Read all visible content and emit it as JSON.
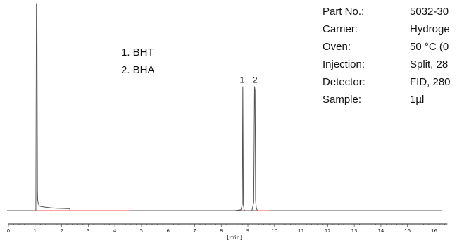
{
  "chart_data": {
    "type": "line",
    "xlabel": "[min]",
    "xlim": [
      0,
      16.5
    ],
    "xticks": [
      0,
      1,
      2,
      3,
      4,
      5,
      6,
      7,
      8,
      9,
      10,
      11,
      12,
      13,
      14,
      15,
      16
    ],
    "ylim": [
      0,
      100
    ],
    "grid": false,
    "series": [
      {
        "color": "#555555",
        "x": [
          1.0,
          1.03,
          1.05,
          1.07,
          1.09,
          1.1,
          1.12,
          1.15,
          1.2,
          1.4,
          1.6,
          1.8,
          2.0,
          2.3,
          2.32,
          8.5,
          8.74,
          8.79,
          8.81,
          8.83,
          8.86,
          8.9,
          9.15,
          9.22,
          9.25,
          9.27,
          9.29,
          9.32,
          9.36,
          16.3
        ],
        "y": [
          0,
          0,
          100,
          100,
          10,
          5,
          3.5,
          2.5,
          2.0,
          1.6,
          1.3,
          1.1,
          1.0,
          0.9,
          0,
          0,
          0.4,
          3,
          60,
          3,
          0.4,
          0,
          0,
          4,
          60,
          58,
          5,
          1,
          0,
          0
        ]
      },
      {
        "color": "#ff4a4a",
        "x": [
          1.0,
          4.55
        ],
        "y": [
          0,
          0
        ]
      },
      {
        "color": "#ff4a4a",
        "x": [
          8.83,
          8.95
        ],
        "y": [
          0,
          0
        ]
      },
      {
        "color": "#ff4a4a",
        "x": [
          9.3,
          9.8
        ],
        "y": [
          0,
          0
        ]
      }
    ],
    "peak_labels": [
      {
        "x": 8.81,
        "y": 60,
        "text": "1"
      },
      {
        "x": 9.27,
        "y": 60,
        "text": "2"
      }
    ]
  },
  "legend": [
    "1.  BHT",
    "2.  BHA"
  ],
  "info": [
    {
      "key": "Part No.:",
      "value": "5032-30"
    },
    {
      "key": "Carrier:",
      "value": "Hydroge"
    },
    {
      "key": "Oven:",
      "value": "50 °C (0"
    },
    {
      "key": "Injection:",
      "value": "Split, 28"
    },
    {
      "key": "Detector:",
      "value": "FID, 280"
    },
    {
      "key": "Sample:",
      "value": "1µl"
    }
  ]
}
